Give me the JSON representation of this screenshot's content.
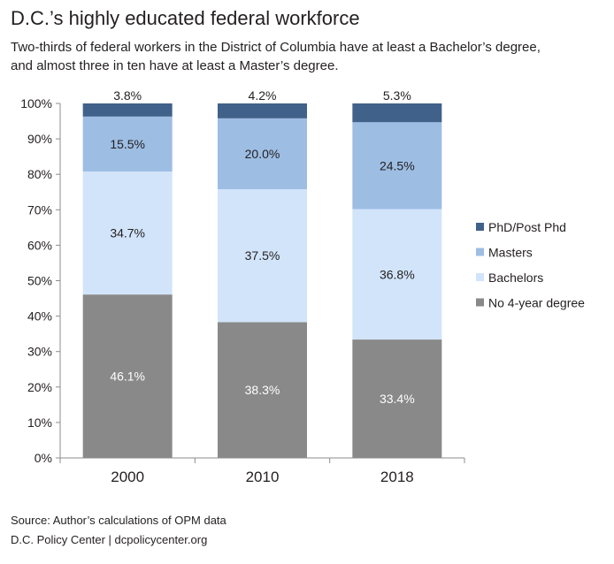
{
  "header": {
    "title": "D.C.’s highly educated federal workforce",
    "subtitle_line1": "Two-thirds of federal workers in the District of Columbia have at least a Bachelor’s degree,",
    "subtitle_line2": "and almost three in ten have at least a Master’s degree."
  },
  "footer": {
    "source": "Source: Author’s calculations of OPM data",
    "credit": "D.C. Policy Center  |  dcpolicycenter.org"
  },
  "chart_data": {
    "type": "bar",
    "stacked": true,
    "percent_scale": true,
    "categories": [
      "2000",
      "2010",
      "2018"
    ],
    "series": [
      {
        "name": "No 4-year degree",
        "values": [
          46.1,
          38.3,
          33.4
        ],
        "labels": [
          "46.1%",
          "38.3%",
          "33.4%"
        ],
        "color": "#898989",
        "label_color": "#ffffff"
      },
      {
        "name": "Bachelors",
        "values": [
          34.7,
          37.5,
          36.8
        ],
        "labels": [
          "34.7%",
          "37.5%",
          "36.8%"
        ],
        "color": "#d2e4fa",
        "label_color": "#231f20"
      },
      {
        "name": "Masters",
        "values": [
          15.5,
          20.0,
          24.5
        ],
        "labels": [
          "15.5%",
          "20.0%",
          "24.5%"
        ],
        "color": "#9dbde3",
        "label_color": "#231f20"
      },
      {
        "name": "PhD/Post Phd",
        "values": [
          3.8,
          4.2,
          5.3
        ],
        "labels": [
          "3.8%",
          "4.2%",
          "5.3%"
        ],
        "color": "#40618a",
        "label_color": "#231f20"
      }
    ],
    "yticks": [
      "0%",
      "10%",
      "20%",
      "30%",
      "40%",
      "50%",
      "60%",
      "70%",
      "80%",
      "90%",
      "100%"
    ],
    "ylim": [
      0,
      100
    ],
    "xlabel": "",
    "ylabel": "",
    "grid": false,
    "legend": "right",
    "legend_order": [
      "PhD/Post Phd",
      "Masters",
      "Bachelors",
      "No 4-year degree"
    ]
  }
}
